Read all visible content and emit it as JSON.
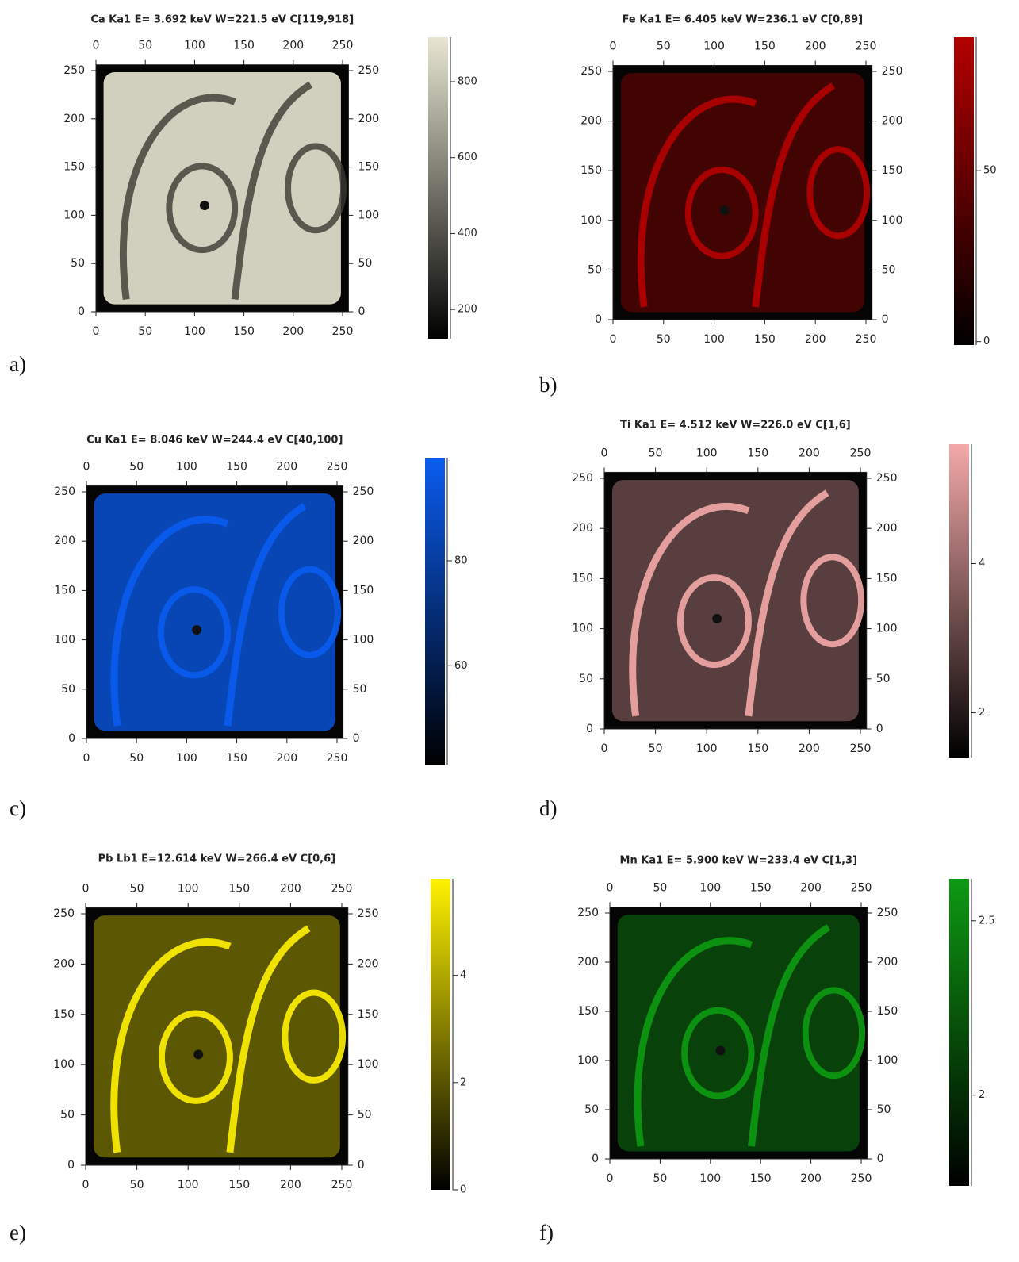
{
  "chart_data": [
    {
      "type": "image",
      "title": "Ca Ka1 E= 3.692 keV W=221.5 eV C[119,918]",
      "label": "a)",
      "color": "#e8e6d2",
      "xlim": [
        0,
        256
      ],
      "ylim": [
        0,
        256
      ],
      "xticks": [
        0,
        50,
        100,
        150,
        200,
        250
      ],
      "yticks": [
        0,
        50,
        100,
        150,
        200,
        250
      ],
      "clim": [
        123,
        917
      ],
      "cticks": [
        200,
        400,
        600,
        800
      ]
    },
    {
      "type": "image",
      "title": "Fe Ka1 E= 6.405 keV W=236.1 eV C[0,89]",
      "label": "b)",
      "color": "#b40000",
      "xlim": [
        0,
        256
      ],
      "ylim": [
        0,
        256
      ],
      "xticks": [
        0,
        50,
        100,
        150,
        200,
        250
      ],
      "yticks": [
        0,
        50,
        100,
        150,
        200,
        250
      ],
      "clim": [
        -1,
        89
      ],
      "cticks": [
        0,
        50
      ]
    },
    {
      "type": "image",
      "title": "Cu Ka1 E= 8.046 keV W=244.4 eV C[40,100]",
      "label": "c)",
      "color": "#0a5cf0",
      "xlim": [
        0,
        256
      ],
      "ylim": [
        0,
        256
      ],
      "xticks": [
        0,
        50,
        100,
        150,
        200,
        250
      ],
      "yticks": [
        0,
        50,
        100,
        150,
        200,
        250
      ],
      "clim": [
        41,
        99.5
      ],
      "cticks": [
        60,
        80
      ]
    },
    {
      "type": "image",
      "title": "Ti Ka1 E= 4.512 keV W=226.0 eV C[1,6]",
      "label": "d)",
      "color": "#f4a9a9",
      "xlim": [
        0,
        256
      ],
      "ylim": [
        0,
        256
      ],
      "xticks": [
        0,
        50,
        100,
        150,
        200,
        250
      ],
      "yticks": [
        0,
        50,
        100,
        150,
        200,
        250
      ],
      "clim": [
        1.4,
        5.6
      ],
      "cticks": [
        2,
        4
      ]
    },
    {
      "type": "image",
      "title": "Pb Lb1 E=12.614 keV W=266.4 eV C[0,6]",
      "label": "e)",
      "color": "#fff200",
      "xlim": [
        0,
        256
      ],
      "ylim": [
        0,
        256
      ],
      "xticks": [
        0,
        50,
        100,
        150,
        200,
        250
      ],
      "yticks": [
        0,
        50,
        100,
        150,
        200,
        250
      ],
      "clim": [
        0,
        5.8
      ],
      "cticks": [
        0,
        2,
        4
      ]
    },
    {
      "type": "image",
      "title": "Mn Ka1 E= 5.900 keV W=233.4 eV C[1,3]",
      "label": "f)",
      "color": "#0d9a12",
      "xlim": [
        0,
        256
      ],
      "ylim": [
        0,
        256
      ],
      "xticks": [
        0,
        50,
        100,
        150,
        200,
        250
      ],
      "yticks": [
        0,
        50,
        100,
        150,
        200,
        250
      ],
      "clim": [
        1.74,
        2.62
      ],
      "cticks": [
        2,
        {
          "value": 2.5,
          "label": "2.5"
        }
      ]
    }
  ]
}
